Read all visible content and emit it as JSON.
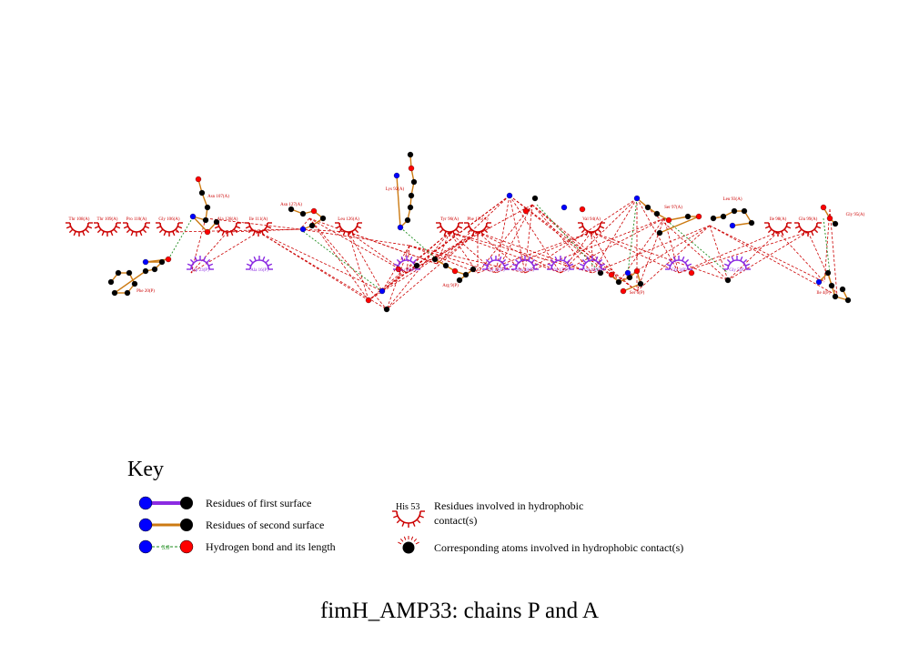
{
  "title": "fimH_AMP33: chains P and A",
  "key": {
    "heading": "Key",
    "items": [
      {
        "label": "Residues of first surface"
      },
      {
        "label": "Residues of second surface"
      },
      {
        "label": "Hydrogen bond and its length",
        "sample_length": "3.0"
      },
      {
        "label": "Residues involved in hydrophobic contact(s)",
        "sample_residue": "His 53"
      },
      {
        "label": "Corresponding atoms involved in hydrophobic contact(s)"
      }
    ]
  },
  "colors": {
    "first_surface": "#8b2be2",
    "second_surface": "#cc7a12",
    "hbond": "#1e8c1e",
    "hydrophobic": "#cc0000",
    "nitrogen": "#0000ff",
    "oxygen": "#ff0000",
    "carbon": "#000000"
  },
  "residues": {
    "chain_P_bonded": [
      "Phe 20(P)",
      "Arg 9(P)",
      "Ser 6(P)",
      "Ile 4(P)"
    ],
    "chain_A_bonded": [
      "Asn 107(A)",
      "Asn 127(A)",
      "Lys 92(A)",
      "Ser 97(A)",
      "Leu 93(A)",
      "Gly 95(A)"
    ],
    "chain_P_hydrophobic": [
      "Trp 23(P)",
      "Ala 16(P)",
      "Leu 10(P)",
      "Tyr 12(P)",
      "Phe 28(P)",
      "Val 17(P)",
      "Val 15(P)",
      "Gly 3(P)",
      "Gly 5(P)"
    ],
    "chain_A_hydrophobic": [
      "Thr 108(A)",
      "Thr 109(A)",
      "Pro 110(A)",
      "Gly 106(A)",
      "Ala 128(A)",
      "Ile 111(A)",
      "Leu 126(A)",
      "Tyr 96(A)",
      "Val 94(A)",
      "Ile 98(A)",
      "Glu 99(A)",
      "Phe 125(A)"
    ]
  }
}
